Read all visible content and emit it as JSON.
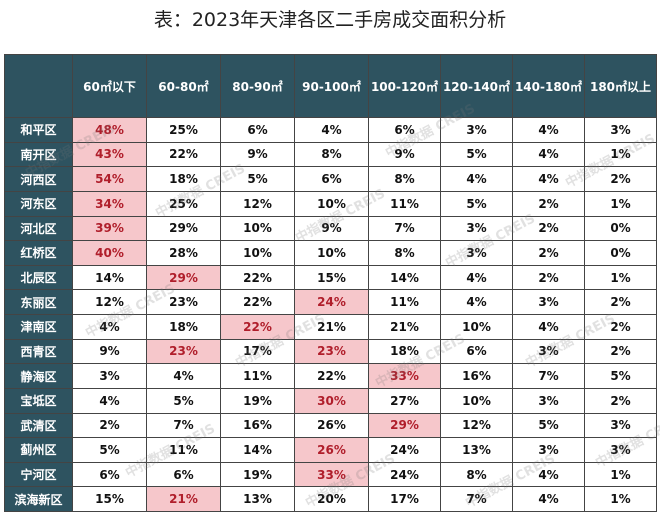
{
  "title": "表：2023年天津各区二手房成交面积分析",
  "watermark": "中指数据 CREIS",
  "colors": {
    "header_bg": "#2e5360",
    "highlight_bg": "#f6c7cb",
    "highlight_text": "#b01e2b"
  },
  "chart_data": {
    "type": "table",
    "columns": [
      "60㎡以下",
      "60-80㎡",
      "80-90㎡",
      "90-100㎡",
      "100-120㎡",
      "120-140㎡",
      "140-180㎡",
      "180㎡以上"
    ],
    "rows": [
      {
        "district": "和平区",
        "values": [
          "48%",
          "25%",
          "6%",
          "4%",
          "6%",
          "3%",
          "4%",
          "3%"
        ],
        "highlight": [
          0
        ]
      },
      {
        "district": "南开区",
        "values": [
          "43%",
          "22%",
          "9%",
          "8%",
          "9%",
          "5%",
          "4%",
          "1%"
        ],
        "highlight": [
          0
        ]
      },
      {
        "district": "河西区",
        "values": [
          "54%",
          "18%",
          "5%",
          "6%",
          "8%",
          "4%",
          "4%",
          "2%"
        ],
        "highlight": [
          0
        ]
      },
      {
        "district": "河东区",
        "values": [
          "34%",
          "25%",
          "12%",
          "10%",
          "11%",
          "5%",
          "2%",
          "1%"
        ],
        "highlight": [
          0
        ]
      },
      {
        "district": "河北区",
        "values": [
          "39%",
          "29%",
          "10%",
          "9%",
          "7%",
          "3%",
          "2%",
          "0%"
        ],
        "highlight": [
          0
        ]
      },
      {
        "district": "红桥区",
        "values": [
          "40%",
          "28%",
          "10%",
          "10%",
          "8%",
          "3%",
          "2%",
          "0%"
        ],
        "highlight": [
          0
        ]
      },
      {
        "district": "北辰区",
        "values": [
          "14%",
          "29%",
          "22%",
          "15%",
          "14%",
          "4%",
          "2%",
          "1%"
        ],
        "highlight": [
          1
        ]
      },
      {
        "district": "东丽区",
        "values": [
          "12%",
          "23%",
          "22%",
          "24%",
          "11%",
          "4%",
          "3%",
          "2%"
        ],
        "highlight": [
          3
        ]
      },
      {
        "district": "津南区",
        "values": [
          "4%",
          "18%",
          "22%",
          "21%",
          "21%",
          "10%",
          "4%",
          "2%"
        ],
        "highlight": [
          2
        ]
      },
      {
        "district": "西青区",
        "values": [
          "9%",
          "23%",
          "17%",
          "23%",
          "18%",
          "6%",
          "3%",
          "2%"
        ],
        "highlight": [
          1,
          3
        ]
      },
      {
        "district": "静海区",
        "values": [
          "3%",
          "4%",
          "11%",
          "22%",
          "33%",
          "16%",
          "7%",
          "5%"
        ],
        "highlight": [
          4
        ]
      },
      {
        "district": "宝坻区",
        "values": [
          "4%",
          "5%",
          "19%",
          "30%",
          "27%",
          "10%",
          "3%",
          "2%"
        ],
        "highlight": [
          3
        ]
      },
      {
        "district": "武清区",
        "values": [
          "2%",
          "7%",
          "16%",
          "26%",
          "29%",
          "12%",
          "5%",
          "3%"
        ],
        "highlight": [
          4
        ]
      },
      {
        "district": "蓟州区",
        "values": [
          "5%",
          "11%",
          "14%",
          "26%",
          "24%",
          "13%",
          "3%",
          "3%"
        ],
        "highlight": [
          3
        ]
      },
      {
        "district": "宁河区",
        "values": [
          "6%",
          "6%",
          "19%",
          "33%",
          "24%",
          "8%",
          "4%",
          "1%"
        ],
        "highlight": [
          3
        ]
      },
      {
        "district": "滨海新区",
        "values": [
          "15%",
          "21%",
          "13%",
          "20%",
          "17%",
          "7%",
          "4%",
          "1%"
        ],
        "highlight": [
          1
        ]
      }
    ]
  }
}
